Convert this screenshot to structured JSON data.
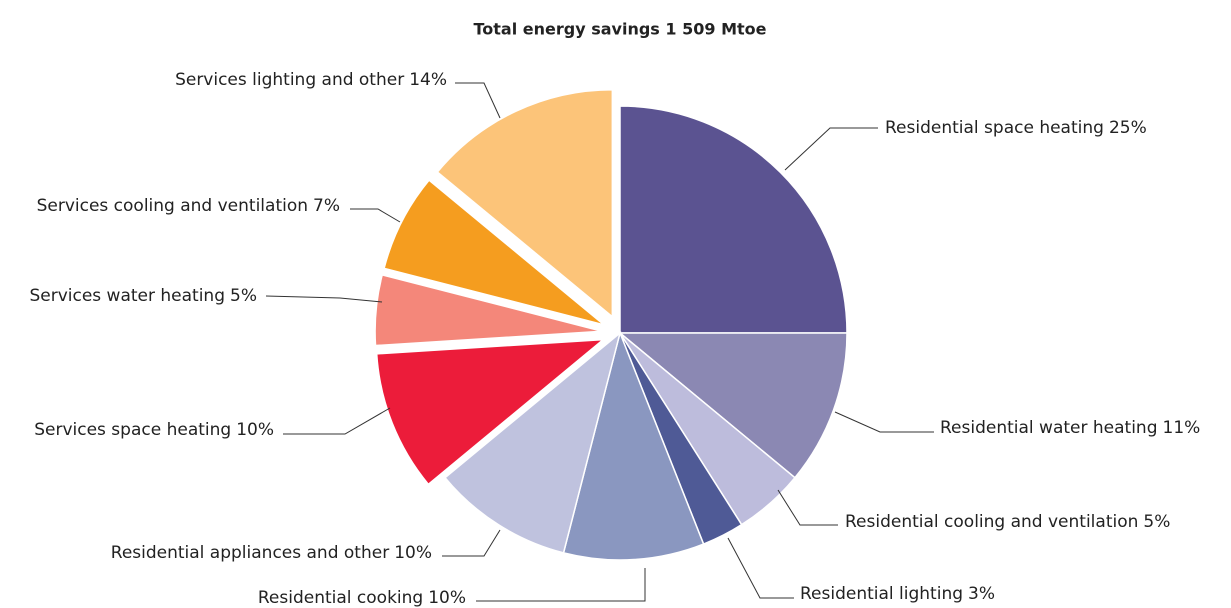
{
  "chart_data": {
    "type": "pie",
    "title": "Total energy savings 1 509 Mtoe",
    "categories": [
      "Residential space heating",
      "Residential water heating",
      "Residential cooling and ventilation",
      "Residential lighting",
      "Residential cooking",
      "Residential appliances and other",
      "Services space heating",
      "Services water heating",
      "Services cooling and ventilation",
      "Services lighting and other"
    ],
    "values": [
      25,
      11,
      5,
      3,
      10,
      10,
      10,
      5,
      7,
      14
    ],
    "value_labels": [
      "25%",
      "11%",
      "5%",
      "3%",
      "10%",
      "10%",
      "10%",
      "5%",
      "7%",
      "14%"
    ],
    "colors": [
      "#5b5391",
      "#8b88b3",
      "#bdbcdc",
      "#4f5a96",
      "#8a97c0",
      "#bfc2de",
      "#ec1c3a",
      "#f4877a",
      "#f59d1f",
      "#fcc479"
    ]
  }
}
